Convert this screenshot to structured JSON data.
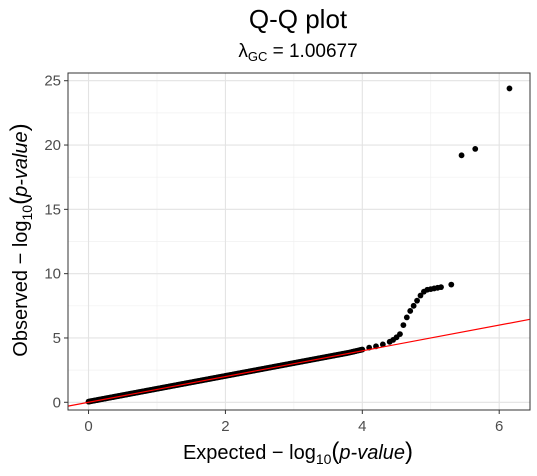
{
  "chart_data": {
    "type": "scatter",
    "title": "Q-Q plot",
    "subtitle": {
      "lambda_symbol": "λ",
      "lambda_subscript": "GC",
      "equals": " = ",
      "value": "1.00677"
    },
    "xlabel": {
      "prefix": "Expected  − log",
      "subscript": "10",
      "open_paren": "(",
      "italic": "p-value",
      "close_paren": ")"
    },
    "ylabel": {
      "prefix": "Observed  − log",
      "subscript": "10",
      "open_paren": "(",
      "italic": "p-value",
      "close_paren": ")"
    },
    "xlim": [
      -0.3,
      6.45
    ],
    "ylim": [
      -0.6,
      25.6
    ],
    "x_ticks": [
      0,
      2,
      4,
      6
    ],
    "y_ticks": [
      0,
      5,
      10,
      15,
      20,
      25
    ],
    "x_tick_labels": [
      "0",
      "2",
      "4",
      "6"
    ],
    "y_tick_labels": [
      "0",
      "5",
      "10",
      "15",
      "20",
      "25"
    ],
    "grid": true,
    "reference_line": {
      "slope": 1,
      "intercept": 0,
      "color": "#ff0000"
    },
    "points": {
      "color": "#000000",
      "x": [
        0.0,
        0.2,
        0.4,
        0.6,
        0.8,
        1.0,
        1.2,
        1.4,
        1.6,
        1.8,
        2.0,
        2.2,
        2.4,
        2.6,
        2.8,
        3.0,
        3.2,
        3.4,
        3.6,
        3.8,
        4.0,
        4.1,
        4.2,
        4.3,
        4.4,
        4.45,
        4.5,
        4.55,
        4.6,
        4.65,
        4.7,
        4.75,
        4.8,
        4.85,
        4.9,
        4.95,
        5.0,
        5.05,
        5.1,
        5.15,
        5.3,
        5.45,
        5.65,
        6.15
      ],
      "y": [
        0.05,
        0.25,
        0.45,
        0.65,
        0.85,
        1.05,
        1.25,
        1.45,
        1.65,
        1.85,
        2.05,
        2.25,
        2.45,
        2.65,
        2.85,
        3.05,
        3.25,
        3.45,
        3.65,
        3.85,
        4.1,
        4.25,
        4.35,
        4.5,
        4.7,
        4.85,
        5.05,
        5.3,
        6.0,
        6.6,
        7.1,
        7.5,
        7.9,
        8.3,
        8.6,
        8.75,
        8.8,
        8.85,
        8.9,
        8.95,
        9.15,
        19.2,
        19.7,
        24.4
      ]
    }
  }
}
